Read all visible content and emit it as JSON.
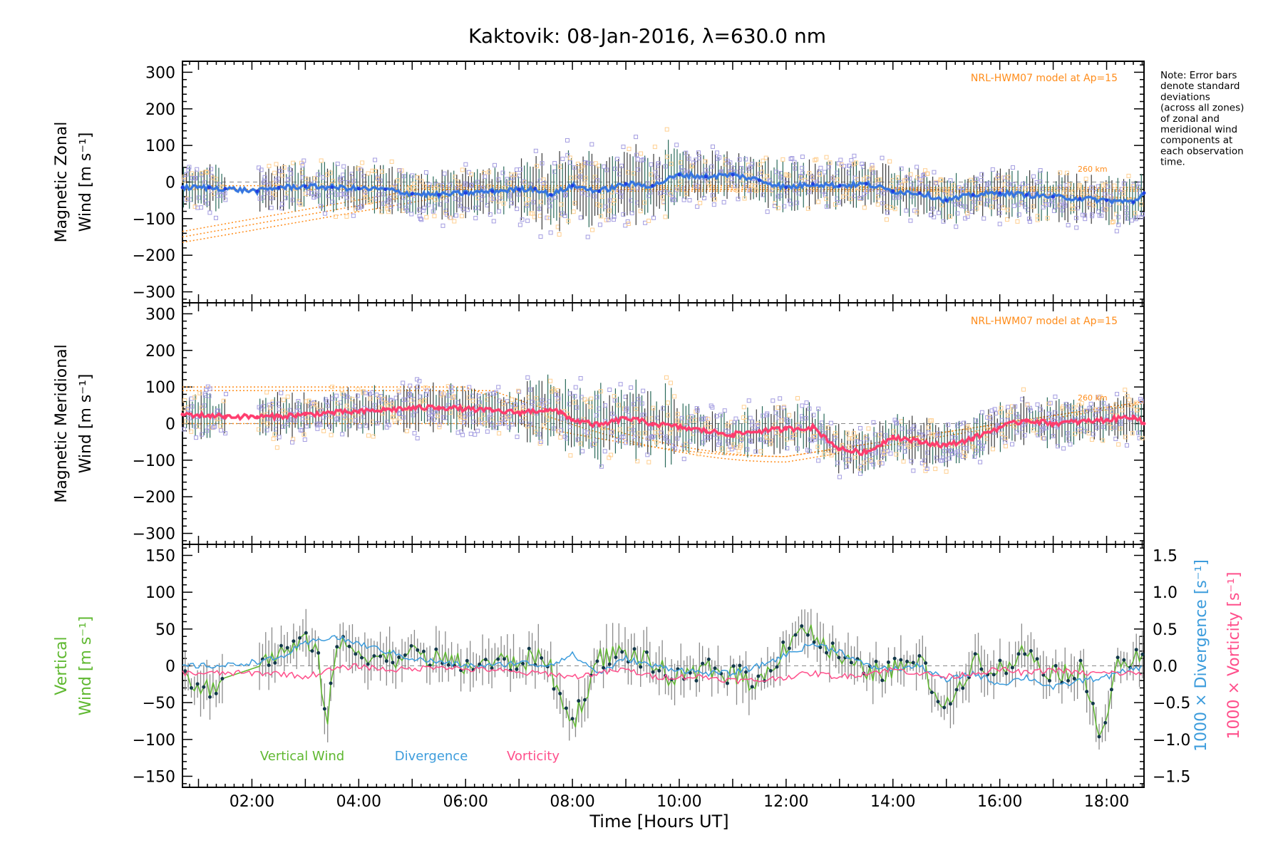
{
  "title": "Kaktovik: 08-Jan-2016, λ=630.0 nm",
  "note": "Note: Error bars denote standard deviations (across all zones) of zonal and meridional wind components at each observation time.",
  "note_lines": [
    "Note: Error bars",
    "denote standard",
    "deviations",
    "(across all zones)",
    "of zonal and",
    "meridional wind",
    "components at",
    "each observation",
    "time."
  ],
  "model_label": "NRL-HWM07 model at Ap=15",
  "alt_label": "260 km",
  "x_axis_label": "Time [Hours UT]",
  "x_ticks": [
    "02:00",
    "04:00",
    "06:00",
    "08:00",
    "10:00",
    "12:00",
    "14:00",
    "16:00",
    "18:00"
  ],
  "colors": {
    "zonal": "#1f3fe0",
    "zonal_light": "#4aa0e0",
    "meridional": "#ff3c6e",
    "vertical": "#5fb830",
    "divergence": "#3c9cdc",
    "vorticity": "#ff4f8b",
    "model": "#ff8c1a",
    "zone_purple": "#a39ce0",
    "zone_orange": "#ffcf90"
  },
  "chart_data": [
    {
      "type": "line",
      "panel": "zonal",
      "ylabel": [
        "Magnetic Zonal",
        "Wind [m s⁻¹]"
      ],
      "ylim": [
        -330,
        330
      ],
      "yticks": [
        300,
        200,
        100,
        0,
        -100,
        -200,
        -300
      ],
      "xlim": [
        0.7,
        18.7
      ],
      "series": [
        {
          "values_t": [
            0.7,
            1.2,
            1.5,
            2.1,
            2.5,
            3.0,
            3.5,
            4.0,
            4.5,
            5.0,
            5.5,
            6.0,
            6.5,
            7.0,
            7.3,
            7.6,
            8.0,
            8.5,
            9.0,
            9.5,
            10.0,
            10.5,
            11.0,
            11.5,
            12.0,
            12.5,
            13.0,
            13.5,
            14.0,
            14.5,
            15.0,
            15.5,
            16.0,
            16.5,
            17.0,
            17.5,
            18.0,
            18.5,
            18.7
          ],
          "values": [
            -15,
            -15,
            -18,
            -25,
            -15,
            -12,
            -14,
            -18,
            -20,
            -32,
            -35,
            -30,
            -25,
            -20,
            -18,
            -35,
            -10,
            -25,
            -5,
            -10,
            20,
            15,
            20,
            5,
            -15,
            -5,
            -10,
            -5,
            -25,
            -30,
            -50,
            -35,
            -30,
            -35,
            -40,
            -45,
            -50,
            -55,
            -30
          ]
        }
      ]
    },
    {
      "type": "line",
      "panel": "meridional",
      "ylabel": [
        "Magnetic Meridional",
        "Wind [m s⁻¹]"
      ],
      "ylim": [
        -330,
        330
      ],
      "yticks": [
        300,
        200,
        100,
        0,
        -100,
        -200,
        -300
      ],
      "xlim": [
        0.7,
        18.7
      ],
      "series": [
        {
          "values_t": [
            0.7,
            1.2,
            1.5,
            2.1,
            2.5,
            3.0,
            3.5,
            4.0,
            4.5,
            5.0,
            5.5,
            6.0,
            6.5,
            7.0,
            7.5,
            7.8,
            8.0,
            8.5,
            9.0,
            9.5,
            10.0,
            10.5,
            11.0,
            11.5,
            12.0,
            12.5,
            13.0,
            13.5,
            14.0,
            14.5,
            15.0,
            15.5,
            16.0,
            16.5,
            17.0,
            17.5,
            18.0,
            18.5,
            18.7
          ],
          "values": [
            25,
            22,
            20,
            18,
            20,
            25,
            30,
            32,
            38,
            42,
            45,
            40,
            35,
            30,
            38,
            30,
            10,
            -5,
            15,
            0,
            -10,
            -20,
            -30,
            -20,
            -15,
            -10,
            -70,
            -80,
            -35,
            -50,
            -60,
            -40,
            -10,
            10,
            0,
            5,
            10,
            20,
            0
          ]
        }
      ]
    },
    {
      "type": "line",
      "panel": "vertical",
      "ylabel": [
        "Vertical",
        "Wind [m s⁻¹]"
      ],
      "ylim": [
        -165,
        165
      ],
      "yticks": [
        150,
        100,
        50,
        0,
        -50,
        -100,
        -150
      ],
      "y2label": [
        "1000 × Divergence [s⁻¹]",
        "1000 × Vorticity [s⁻¹]"
      ],
      "y2lim": [
        -1.65,
        1.65
      ],
      "y2ticks": [
        1.5,
        1.0,
        0.5,
        0.0,
        -0.5,
        -1.0,
        -1.5
      ],
      "xlim": [
        0.7,
        18.7
      ],
      "series": [
        {
          "name": "Vertical Wind",
          "values_t": [
            0.7,
            1.0,
            1.5,
            2.0,
            2.5,
            3.0,
            3.2,
            3.4,
            3.6,
            4.0,
            4.5,
            5.0,
            5.5,
            6.0,
            6.5,
            7.0,
            7.5,
            7.8,
            8.0,
            8.5,
            9.0,
            9.5,
            10.0,
            10.5,
            11.0,
            11.5,
            12.0,
            12.3,
            12.6,
            13.0,
            13.5,
            14.0,
            14.5,
            15.0,
            15.5,
            16.0,
            16.5,
            17.0,
            17.5,
            17.9,
            18.2,
            18.7
          ],
          "values": [
            0,
            -35,
            -20,
            0,
            15,
            30,
            35,
            -80,
            30,
            20,
            10,
            15,
            10,
            0,
            5,
            5,
            15,
            -50,
            -80,
            10,
            20,
            0,
            -20,
            -5,
            -10,
            -25,
            30,
            55,
            35,
            10,
            -10,
            -5,
            5,
            -60,
            10,
            -5,
            20,
            -10,
            -5,
            -90,
            5,
            10
          ]
        },
        {
          "name": "Divergence",
          "values_t": [
            0.7,
            1.5,
            2.5,
            3.0,
            3.5,
            4.0,
            4.5,
            5.0,
            5.5,
            6.0,
            6.5,
            7.0,
            7.5,
            8.0,
            8.5,
            9.0,
            9.5,
            10.0,
            10.5,
            11.0,
            11.5,
            12.0,
            12.5,
            13.0,
            13.5,
            14.0,
            14.5,
            15.0,
            15.5,
            16.0,
            16.5,
            17.0,
            17.5,
            18.0,
            18.7
          ],
          "values": [
            0.0,
            0.0,
            0.1,
            0.3,
            0.4,
            0.3,
            0.2,
            0.1,
            0.05,
            0.0,
            0.0,
            0.05,
            0.0,
            0.15,
            -0.1,
            0.1,
            0.0,
            -0.05,
            -0.1,
            -0.1,
            0.0,
            0.15,
            0.3,
            0.2,
            0.0,
            -0.05,
            0.0,
            -0.2,
            -0.1,
            -0.25,
            -0.15,
            -0.3,
            -0.2,
            -0.15,
            0.0
          ]
        },
        {
          "name": "Vorticity",
          "values_t": [
            0.7,
            1.5,
            2.5,
            3.0,
            3.5,
            4.0,
            4.5,
            5.0,
            5.5,
            6.0,
            6.5,
            7.0,
            7.5,
            8.0,
            8.5,
            9.0,
            9.5,
            10.0,
            10.5,
            11.0,
            11.5,
            12.0,
            12.5,
            13.0,
            13.5,
            14.0,
            14.5,
            15.0,
            15.5,
            16.0,
            16.5,
            17.0,
            17.5,
            18.0,
            18.7
          ],
          "values": [
            -0.1,
            -0.1,
            -0.1,
            -0.15,
            -0.05,
            0.0,
            -0.05,
            -0.05,
            0.0,
            -0.05,
            -0.05,
            -0.1,
            -0.1,
            -0.15,
            -0.1,
            -0.05,
            -0.15,
            -0.15,
            -0.15,
            -0.2,
            -0.2,
            -0.15,
            -0.1,
            -0.15,
            -0.1,
            -0.05,
            -0.1,
            -0.15,
            -0.1,
            -0.05,
            -0.1,
            -0.05,
            -0.1,
            -0.1,
            -0.1
          ]
        }
      ]
    }
  ]
}
